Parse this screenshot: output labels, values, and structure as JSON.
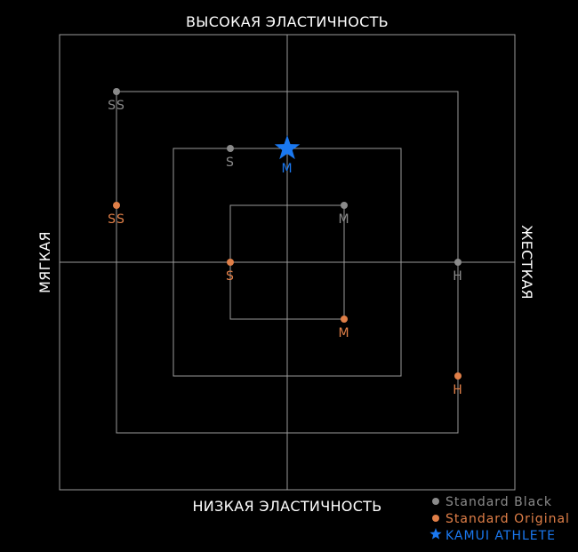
{
  "chart_data": {
    "type": "scatter",
    "title": "",
    "axis_labels": {
      "top": "ВЫСОКАЯ ЭЛАСТИЧНОСТЬ",
      "bottom": "НИЗКАЯ ЭЛАСТИЧНОСТЬ",
      "left": "МЯГКАЯ",
      "right": "ЖЕСТКАЯ"
    },
    "xlabel_low": "МЯГКАЯ",
    "xlabel_high": "ЖЕСТКАЯ",
    "ylabel_low": "НИЗКАЯ ЭЛАСТИЧНОСТЬ",
    "ylabel_high": "ВЫСОКАЯ ЭЛАСТИЧНОСТЬ",
    "xlim": [
      -4,
      4
    ],
    "ylim": [
      -4,
      4
    ],
    "grid_squares": [
      4,
      3,
      2,
      1
    ],
    "center_cross": true,
    "series": [
      {
        "name": "Standard Black",
        "color": "#8a8a8a",
        "marker": "circle",
        "points": [
          {
            "label": "SS",
            "x": -3,
            "y": 3
          },
          {
            "label": "S",
            "x": -1,
            "y": 2
          },
          {
            "label": "M",
            "x": 1,
            "y": 1
          },
          {
            "label": "H",
            "x": 3,
            "y": 0
          }
        ]
      },
      {
        "name": "Standard Original",
        "color": "#e07f48",
        "marker": "circle",
        "points": [
          {
            "label": "SS",
            "x": -3,
            "y": 1
          },
          {
            "label": "S",
            "x": -1,
            "y": 0
          },
          {
            "label": "M",
            "x": 1,
            "y": -1
          },
          {
            "label": "H",
            "x": 3,
            "y": -2
          }
        ]
      },
      {
        "name": "KAMUI ATHLETE",
        "color": "#1a78f0",
        "marker": "star",
        "points": [
          {
            "label": "M",
            "x": 0,
            "y": 2
          }
        ]
      }
    ],
    "legend_position": "bottom-right"
  },
  "colors": {
    "background": "#000000",
    "grid": "#9a9a9a",
    "text": "#ffffff"
  }
}
